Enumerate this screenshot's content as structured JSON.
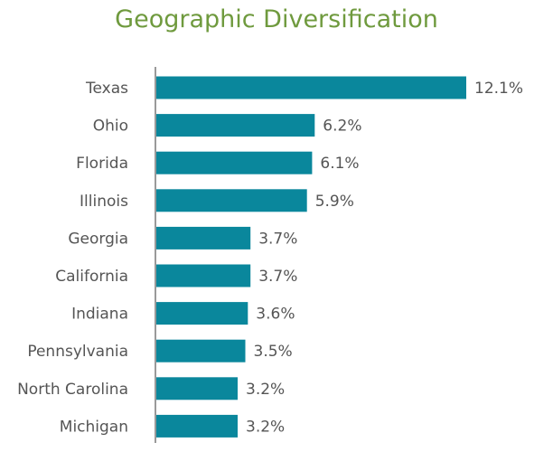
{
  "chart_data": {
    "type": "bar",
    "orientation": "horizontal",
    "title": "Geographic Diversification",
    "categories": [
      "Texas",
      "Ohio",
      "Florida",
      "Illinois",
      "Georgia",
      "California",
      "Indiana",
      "Pennsylvania",
      "North Carolina",
      "Michigan"
    ],
    "values": [
      12.1,
      6.2,
      6.1,
      5.9,
      3.7,
      3.7,
      3.6,
      3.5,
      3.2,
      3.2
    ],
    "value_labels": [
      "12.1%",
      "6.2%",
      "6.1%",
      "5.9%",
      "3.7%",
      "3.7%",
      "3.6%",
      "3.5%",
      "3.2%",
      "3.2%"
    ],
    "unit": "%",
    "xlim": [
      0,
      12.1
    ],
    "grid": false,
    "legend": "none",
    "colors": {
      "bar": "#0a879c",
      "title": "#6f9a3e",
      "axis": "#9a9a9a",
      "text": "#555555"
    }
  }
}
